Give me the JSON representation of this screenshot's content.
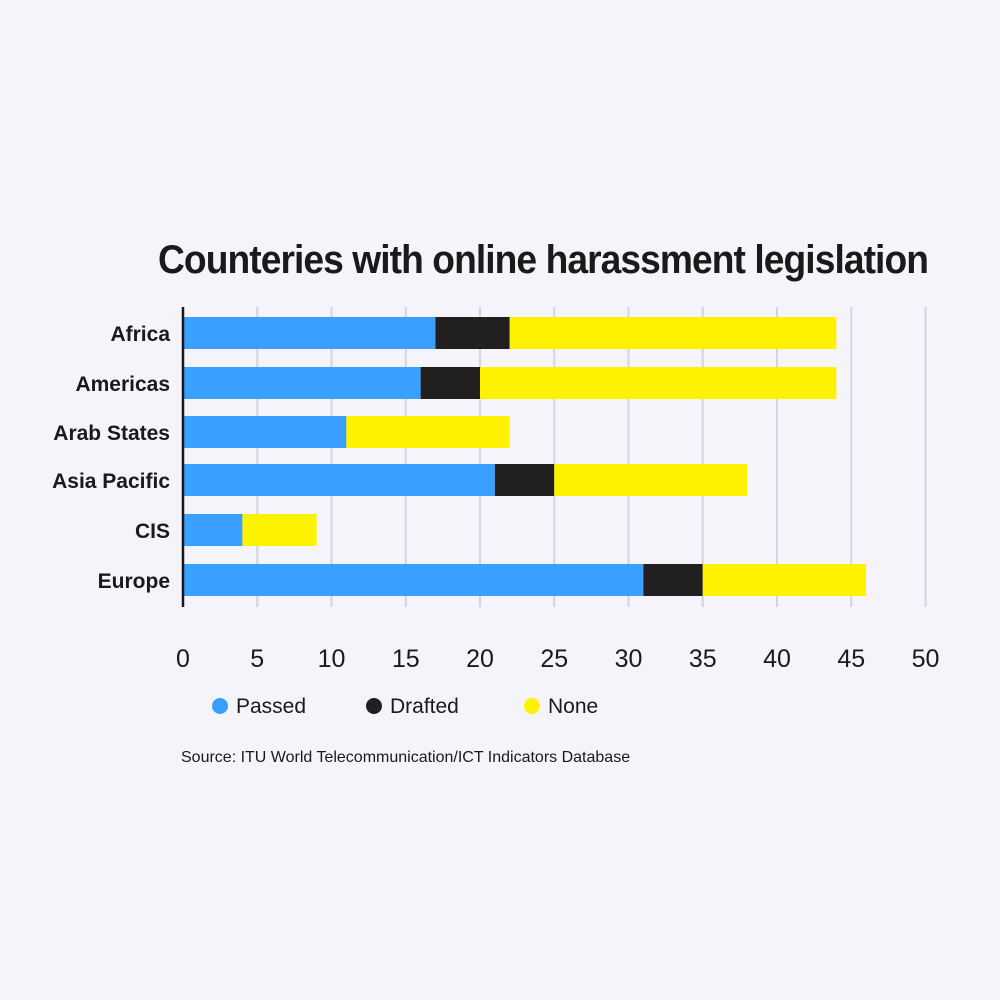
{
  "chart_data": {
    "type": "bar",
    "orientation": "horizontal",
    "stacked": true,
    "title": "Counteries with online harassment legislation",
    "categories": [
      "Africa",
      "Americas",
      "Arab States",
      "Asia Pacific",
      "CIS",
      "Europe"
    ],
    "series": [
      {
        "name": "Passed",
        "color": "#3aa0ff",
        "values": [
          17,
          16,
          11,
          21,
          4,
          31
        ]
      },
      {
        "name": "Drafted",
        "color": "#221f20",
        "values": [
          5,
          4,
          0,
          4,
          0,
          4
        ]
      },
      {
        "name": "None",
        "color": "#fff200",
        "values": [
          22,
          24,
          11,
          13,
          5,
          11
        ]
      }
    ],
    "xlim": [
      0,
      50
    ],
    "xticks": [
      "0",
      "5",
      "10",
      "15",
      "20",
      "25",
      "30",
      "35",
      "40",
      "45",
      "50"
    ],
    "grid": true,
    "legend_position": "bottom-left",
    "source": "Source: ITU World Telecommunication/ICT Indicators Database"
  }
}
